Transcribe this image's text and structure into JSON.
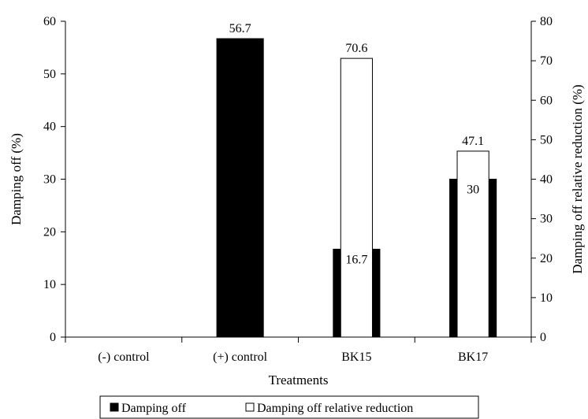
{
  "chart_data": {
    "type": "bar",
    "title": "",
    "xlabel": "Treatments",
    "ylabel": "Damping off (%)",
    "y2label": "Damping off relative reduction (%)",
    "categories": [
      "(-) control",
      "(+) control",
      "BK15",
      "BK17"
    ],
    "ylim": [
      0,
      60
    ],
    "y2lim": [
      0,
      80
    ],
    "yticks": [
      0,
      10,
      20,
      30,
      40,
      50,
      60
    ],
    "y2ticks": [
      0,
      10,
      20,
      30,
      40,
      50,
      60,
      70,
      80
    ],
    "legend_position": "bottom",
    "grid": false,
    "series": [
      {
        "name": "Damping off",
        "axis": "left",
        "color": "#000000",
        "values": [
          0,
          56.7,
          16.7,
          30
        ],
        "labels": [
          "",
          "56.7",
          "16.7",
          "30"
        ]
      },
      {
        "name": "Damping off relative reduction",
        "axis": "right",
        "color": "#ffffff",
        "values": [
          null,
          null,
          70.6,
          47.1
        ],
        "labels": [
          "",
          "",
          "70.6",
          "47.1"
        ]
      }
    ]
  }
}
